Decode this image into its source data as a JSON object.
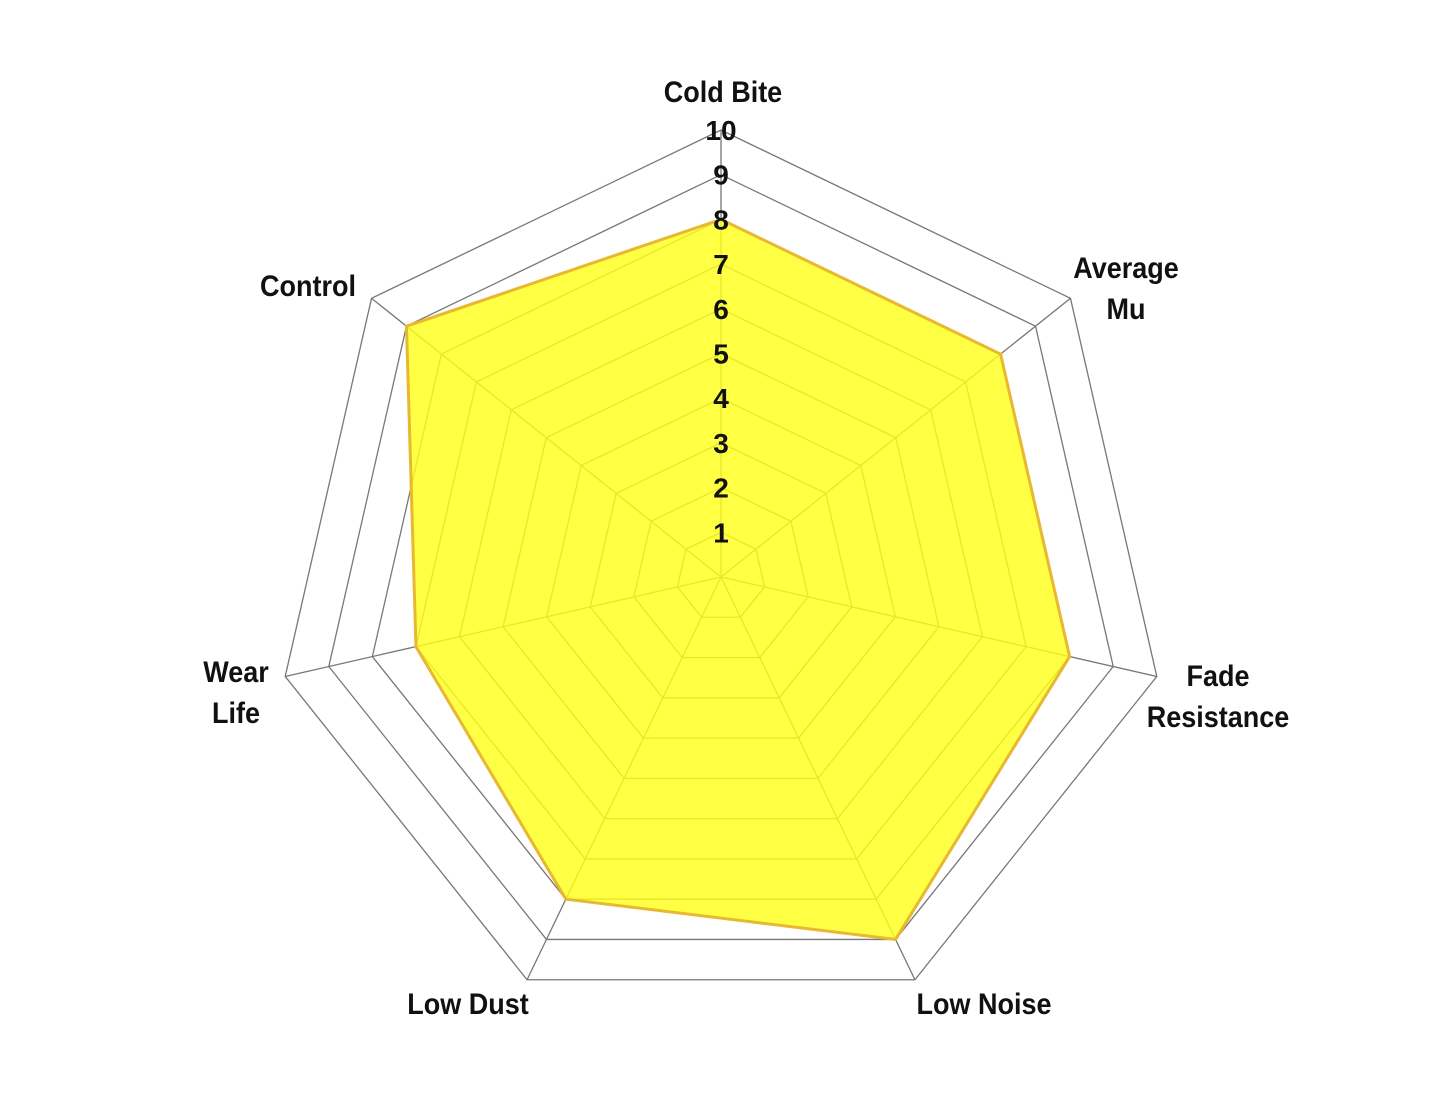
{
  "chart_data": {
    "type": "radar",
    "title": "",
    "axes": [
      "Cold Bite",
      "Average Mu",
      "Fade Resistance",
      "Low Noise",
      "Low Dust",
      "Wear Life",
      "Control"
    ],
    "axis_label_lines": [
      [
        "Cold Bite"
      ],
      [
        "Average",
        "Mu"
      ],
      [
        "Fade",
        "Resistance"
      ],
      [
        "Low Noise"
      ],
      [
        "Low Dust"
      ],
      [
        "Wear",
        "Life"
      ],
      [
        "Control"
      ]
    ],
    "series": [
      {
        "values": [
          8,
          8,
          8,
          9,
          8,
          7,
          9
        ]
      }
    ],
    "range": [
      0,
      10
    ],
    "ticks": [
      "1",
      "2",
      "3",
      "4",
      "5",
      "6",
      "7",
      "8",
      "9",
      "10"
    ],
    "grid": true,
    "colors": {
      "fill": "#ffff1a",
      "stroke": "#e8b830",
      "grid": "#777777"
    }
  }
}
